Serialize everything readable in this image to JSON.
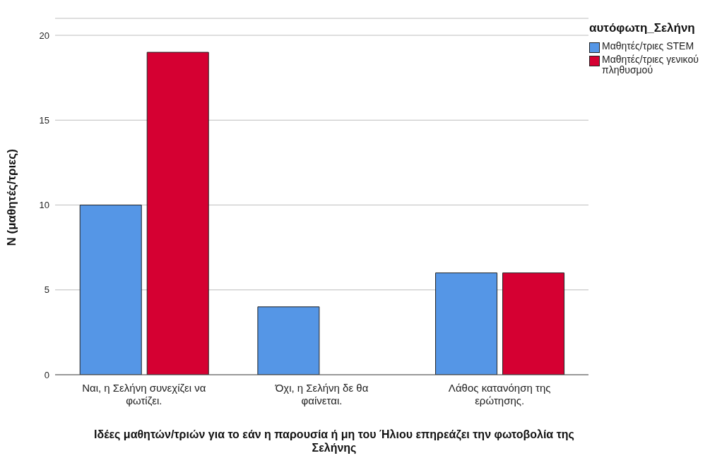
{
  "chart_data": {
    "type": "bar",
    "xlabel": "Ιδέες μαθητών/τριών για το εάν η παρουσία ή μη του Ήλιου επηρεάζει την φωτοβολία της Σελήνης",
    "ylabel": "N (μαθητές/τριες)",
    "legend_title": "αυτόφωτη_Σελήνη",
    "categories": [
      "Ναι, η Σελήνη συνεχίζει να φωτίζει.",
      "Όχι, η Σελήνη δε θα φαίνεται.",
      "Λάθος κατανόηση της ερώτησης."
    ],
    "series": [
      {
        "name": "Μαθητές/τριες STEM",
        "color": "#5596e6",
        "values": [
          10,
          4,
          6
        ]
      },
      {
        "name": "Μαθητές/τριες γενικού πληθυσμού",
        "color": "#d50032",
        "values": [
          19,
          0,
          6
        ]
      }
    ],
    "ylim": [
      0,
      21
    ],
    "yticks": [
      0,
      5,
      10,
      15,
      20
    ],
    "grid": "y",
    "legend": "top right"
  }
}
